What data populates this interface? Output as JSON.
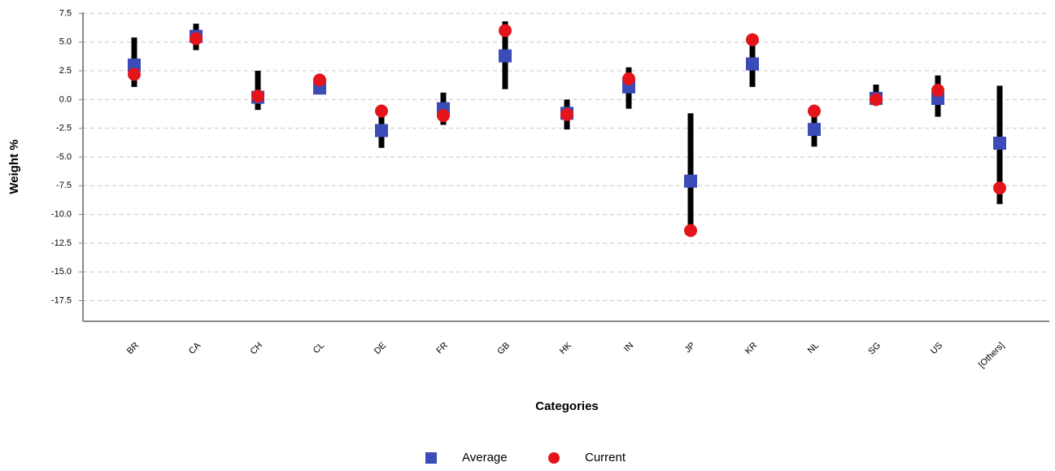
{
  "chart_data": {
    "type": "range-dot",
    "x_label": "Categories",
    "y_label": "Weight %",
    "categories": [
      "BR",
      "CA",
      "CH",
      "CL",
      "DE",
      "FR",
      "GB",
      "HK",
      "IN",
      "JP",
      "KR",
      "NL",
      "SG",
      "US",
      "[Others]"
    ],
    "ranges": {
      "color": "#000000",
      "low": [
        1.1,
        4.3,
        -0.9,
        0.9,
        -4.2,
        -2.2,
        0.9,
        -2.6,
        -0.8,
        -11.4,
        1.1,
        -4.1,
        -0.1,
        -1.5,
        -9.1
      ],
      "high": [
        5.4,
        6.6,
        2.5,
        1.8,
        -1.0,
        0.6,
        6.8,
        0.0,
        2.8,
        -1.2,
        5.3,
        -1.1,
        1.3,
        2.1,
        1.2
      ]
    },
    "series": [
      {
        "name": "Average",
        "color": "#3b4bb8",
        "marker": "square",
        "values": [
          3.0,
          5.5,
          0.2,
          1.0,
          -2.7,
          -0.8,
          3.8,
          -1.2,
          1.1,
          -7.1,
          3.1,
          -2.6,
          0.1,
          0.1,
          -3.8
        ]
      },
      {
        "name": "Current",
        "color": "#e4141b",
        "marker": "circle",
        "values": [
          2.2,
          5.3,
          0.3,
          1.7,
          -1.0,
          -1.4,
          6.0,
          -1.3,
          1.8,
          -11.4,
          5.2,
          -1.0,
          0.0,
          0.8,
          -7.7
        ]
      }
    ],
    "ylim": [
      -19.3,
      7.6
    ],
    "yticks": [
      7.5,
      {
        "value": 5,
        "label": "5.0"
      },
      2.5,
      {
        "value": 0,
        "label": "0.0"
      },
      -2.5,
      {
        "value": -5,
        "label": "-5.0"
      },
      -7.5,
      {
        "value": -10,
        "label": "-10.0"
      },
      -12.5,
      {
        "value": -15,
        "label": "-15.0"
      },
      -17.5
    ],
    "grid": true
  }
}
